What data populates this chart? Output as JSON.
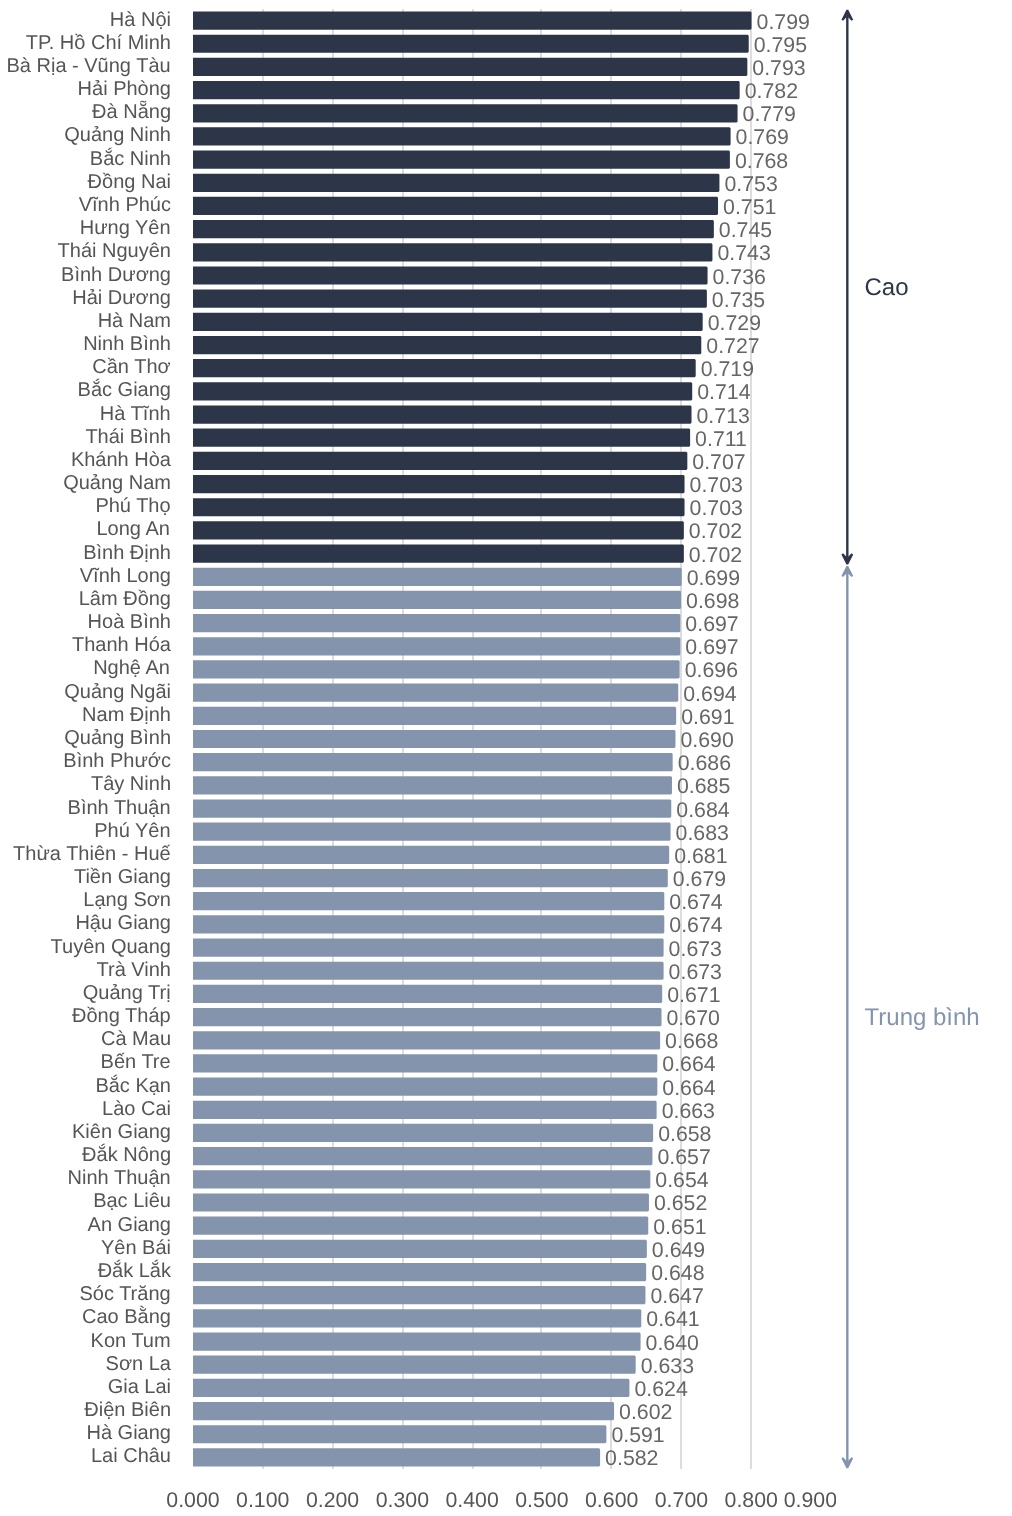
{
  "chart_data": {
    "type": "bar",
    "orientation": "horizontal",
    "categories": [
      "Hà Nội",
      "TP. Hồ Chí Minh",
      "Bà Rịa - Vũng Tàu",
      "Hải Phòng",
      "Đà Nẵng",
      "Quảng Ninh",
      "Bắc Ninh",
      "Đồng Nai",
      "Vĩnh Phúc",
      "Hưng Yên",
      "Thái Nguyên",
      "Bình Dương",
      "Hải Dương",
      "Hà Nam",
      "Ninh Bình",
      "Cần Thơ",
      "Bắc Giang",
      "Hà Tĩnh",
      "Thái Bình",
      "Khánh Hòa",
      "Quảng Nam",
      "Phú Thọ",
      "Long An",
      "Bình Định",
      "Vĩnh Long",
      "Lâm Đồng",
      "Hoà Bình",
      "Thanh Hóa",
      "Nghệ An",
      "Quảng Ngãi",
      "Nam Định",
      "Quảng Bình",
      "Bình Phước",
      "Tây Ninh",
      "Bình Thuận",
      "Phú Yên",
      "Thừa Thiên - Huế",
      "Tiền Giang",
      "Lạng Sơn",
      "Hậu Giang",
      "Tuyên Quang",
      "Trà Vinh",
      "Quảng Trị",
      "Đồng Tháp",
      "Cà Mau",
      "Bến Tre",
      "Bắc Kạn",
      "Lào Cai",
      "Kiên Giang",
      "Đắk Nông",
      "Ninh Thuận",
      "Bạc Liêu",
      "An Giang",
      "Yên Bái",
      "Đắk Lắk",
      "Sóc Trăng",
      "Cao Bằng",
      "Kon Tum",
      "Sơn La",
      "Gia Lai",
      "Điện Biên",
      "Hà Giang",
      "Lai Châu"
    ],
    "values": [
      0.799,
      0.795,
      0.793,
      0.782,
      0.779,
      0.769,
      0.768,
      0.753,
      0.751,
      0.745,
      0.743,
      0.736,
      0.735,
      0.729,
      0.727,
      0.719,
      0.714,
      0.713,
      0.711,
      0.707,
      0.703,
      0.703,
      0.702,
      0.702,
      0.699,
      0.698,
      0.697,
      0.697,
      0.696,
      0.694,
      0.691,
      0.69,
      0.686,
      0.685,
      0.684,
      0.683,
      0.681,
      0.679,
      0.674,
      0.674,
      0.673,
      0.673,
      0.671,
      0.67,
      0.668,
      0.664,
      0.664,
      0.663,
      0.658,
      0.657,
      0.654,
      0.652,
      0.651,
      0.649,
      0.648,
      0.647,
      0.641,
      0.64,
      0.633,
      0.624,
      0.602,
      0.591,
      0.582
    ],
    "colors": [
      "#2d3648",
      "#2d3648",
      "#2d3648",
      "#2d3648",
      "#2d3648",
      "#2d3648",
      "#2d3648",
      "#2d3648",
      "#2d3648",
      "#2d3648",
      "#2d3648",
      "#2d3648",
      "#2d3648",
      "#2d3648",
      "#2d3648",
      "#2d3648",
      "#2d3648",
      "#2d3648",
      "#2d3648",
      "#2d3648",
      "#2d3648",
      "#2d3648",
      "#2d3648",
      "#2d3648",
      "#8594ad",
      "#8594ad",
      "#8594ad",
      "#8594ad",
      "#8594ad",
      "#8594ad",
      "#8594ad",
      "#8594ad",
      "#8594ad",
      "#8594ad",
      "#8594ad",
      "#8594ad",
      "#8594ad",
      "#8594ad",
      "#8594ad",
      "#8594ad",
      "#8594ad",
      "#8594ad",
      "#8594ad",
      "#8594ad",
      "#8594ad",
      "#8594ad",
      "#8594ad",
      "#8594ad",
      "#8594ad",
      "#8594ad",
      "#8594ad",
      "#8594ad",
      "#8594ad",
      "#8594ad",
      "#8594ad",
      "#8594ad",
      "#8594ad",
      "#8594ad",
      "#8594ad",
      "#8594ad",
      "#8594ad",
      "#8594ad",
      "#8594ad"
    ],
    "xlim": [
      0,
      0.9
    ],
    "xticks": [
      {
        "value": 0,
        "label": "0.000"
      },
      {
        "value": 0.1,
        "label": "0.100"
      },
      {
        "value": 0.2,
        "label": "0.200"
      },
      {
        "value": 0.3,
        "label": "0.300"
      },
      {
        "value": 0.4,
        "label": "0.400"
      },
      {
        "value": 0.5,
        "label": "0.500"
      },
      {
        "value": 0.6,
        "label": "0.600"
      },
      {
        "value": 0.7,
        "label": "0.700"
      },
      {
        "value": 0.8,
        "label": "0.800"
      },
      {
        "value": 0.9,
        "label": "0.900"
      }
    ],
    "value_labels": [
      "0.799",
      "0.795",
      "0.793",
      "0.782",
      "0.779",
      "0.769",
      "0.768",
      "0.753",
      "0.751",
      "0.745",
      "0.743",
      "0.736",
      "0.735",
      "0.729",
      "0.727",
      "0.719",
      "0.714",
      "0.713",
      "0.711",
      "0.707",
      "0.703",
      "0.703",
      "0.702",
      "0.702",
      "0.699",
      "0.698",
      "0.697",
      "0.697",
      "0.696",
      "0.694",
      "0.691",
      "0.690",
      "0.686",
      "0.685",
      "0.684",
      "0.683",
      "0.681",
      "0.679",
      "0.674",
      "0.674",
      "0.673",
      "0.673",
      "0.671",
      "0.670",
      "0.668",
      "0.664",
      "0.664",
      "0.663",
      "0.658",
      "0.657",
      "0.654",
      "0.652",
      "0.651",
      "0.649",
      "0.648",
      "0.647",
      "0.641",
      "0.640",
      "0.633",
      "0.624",
      "0.602",
      "0.591",
      "0.582"
    ],
    "grid": "x",
    "annotations": [
      "Cao",
      "Trung bình"
    ]
  }
}
